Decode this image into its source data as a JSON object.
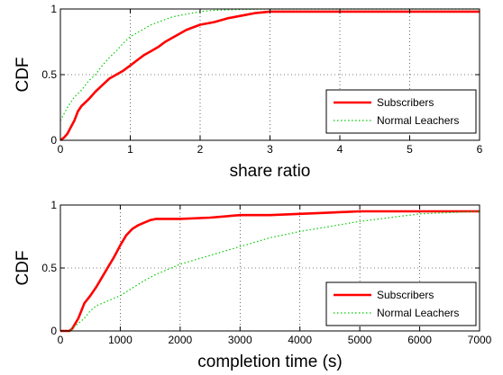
{
  "chart_data": [
    {
      "type": "line",
      "xlabel": "share ratio",
      "ylabel": "CDF",
      "xlim": [
        0,
        6
      ],
      "ylim": [
        0,
        1
      ],
      "x_ticks": [
        "0",
        "1",
        "2",
        "3",
        "4",
        "5",
        "6"
      ],
      "y_ticks": [
        "0",
        "0.5",
        "1"
      ],
      "grid": true,
      "legend_position": "bottom-right",
      "series": [
        {
          "name": "Subscribers",
          "color": "#ff0000",
          "style": "solid",
          "x": [
            0,
            0.05,
            0.1,
            0.15,
            0.2,
            0.25,
            0.3,
            0.4,
            0.5,
            0.6,
            0.7,
            0.8,
            0.9,
            1.0,
            1.1,
            1.2,
            1.3,
            1.4,
            1.5,
            1.6,
            1.7,
            1.8,
            1.9,
            2.0,
            2.2,
            2.4,
            2.6,
            2.8,
            3.0,
            3.5,
            4.0,
            5.0,
            6.0
          ],
          "y": [
            0,
            0.02,
            0.05,
            0.1,
            0.15,
            0.22,
            0.26,
            0.31,
            0.37,
            0.42,
            0.47,
            0.5,
            0.53,
            0.57,
            0.61,
            0.65,
            0.68,
            0.71,
            0.75,
            0.78,
            0.81,
            0.84,
            0.86,
            0.88,
            0.9,
            0.93,
            0.95,
            0.97,
            0.98,
            0.98,
            0.98,
            0.98,
            0.98
          ]
        },
        {
          "name": "Normal Leachers",
          "color": "#00cc00",
          "style": "dotted",
          "x": [
            0,
            0.05,
            0.1,
            0.2,
            0.3,
            0.4,
            0.5,
            0.6,
            0.7,
            0.8,
            0.9,
            1.0,
            1.1,
            1.2,
            1.3,
            1.4,
            1.5,
            1.6,
            1.8,
            2.0,
            2.2,
            2.5,
            3.0,
            4.0,
            5.0,
            6.0
          ],
          "y": [
            0.15,
            0.2,
            0.25,
            0.33,
            0.38,
            0.45,
            0.5,
            0.57,
            0.63,
            0.68,
            0.74,
            0.79,
            0.82,
            0.85,
            0.88,
            0.9,
            0.92,
            0.94,
            0.96,
            0.98,
            0.99,
            0.995,
            1.0,
            1.0,
            1.0,
            1.0
          ]
        }
      ]
    },
    {
      "type": "line",
      "xlabel": "completion time (s)",
      "ylabel": "CDF",
      "xlim": [
        0,
        7000
      ],
      "ylim": [
        0,
        1
      ],
      "x_ticks": [
        "0",
        "1000",
        "2000",
        "3000",
        "4000",
        "5000",
        "6000",
        "7000"
      ],
      "y_ticks": [
        "0",
        "0.5",
        "1"
      ],
      "grid": true,
      "legend_position": "bottom-right",
      "series": [
        {
          "name": "Subscribers",
          "color": "#ff0000",
          "style": "solid",
          "x": [
            0,
            150,
            200,
            300,
            400,
            500,
            600,
            700,
            800,
            900,
            1000,
            1100,
            1200,
            1300,
            1400,
            1500,
            1600,
            2000,
            2500,
            3000,
            3500,
            4000,
            4500,
            5000,
            6000,
            7000
          ],
          "y": [
            0,
            0.0,
            0.02,
            0.1,
            0.22,
            0.28,
            0.35,
            0.43,
            0.51,
            0.59,
            0.68,
            0.76,
            0.81,
            0.84,
            0.86,
            0.88,
            0.89,
            0.89,
            0.9,
            0.92,
            0.92,
            0.93,
            0.94,
            0.95,
            0.95,
            0.95
          ]
        },
        {
          "name": "Normal Leachers",
          "color": "#00cc00",
          "style": "dotted",
          "x": [
            0,
            150,
            200,
            300,
            400,
            500,
            600,
            800,
            1000,
            1200,
            1400,
            1600,
            1800,
            2000,
            2500,
            3000,
            3500,
            4000,
            4500,
            5000,
            5500,
            6000,
            7000
          ],
          "y": [
            0,
            0.0,
            0.02,
            0.06,
            0.1,
            0.16,
            0.2,
            0.24,
            0.28,
            0.34,
            0.4,
            0.45,
            0.49,
            0.53,
            0.6,
            0.67,
            0.74,
            0.79,
            0.83,
            0.87,
            0.9,
            0.93,
            0.95
          ]
        }
      ]
    }
  ]
}
